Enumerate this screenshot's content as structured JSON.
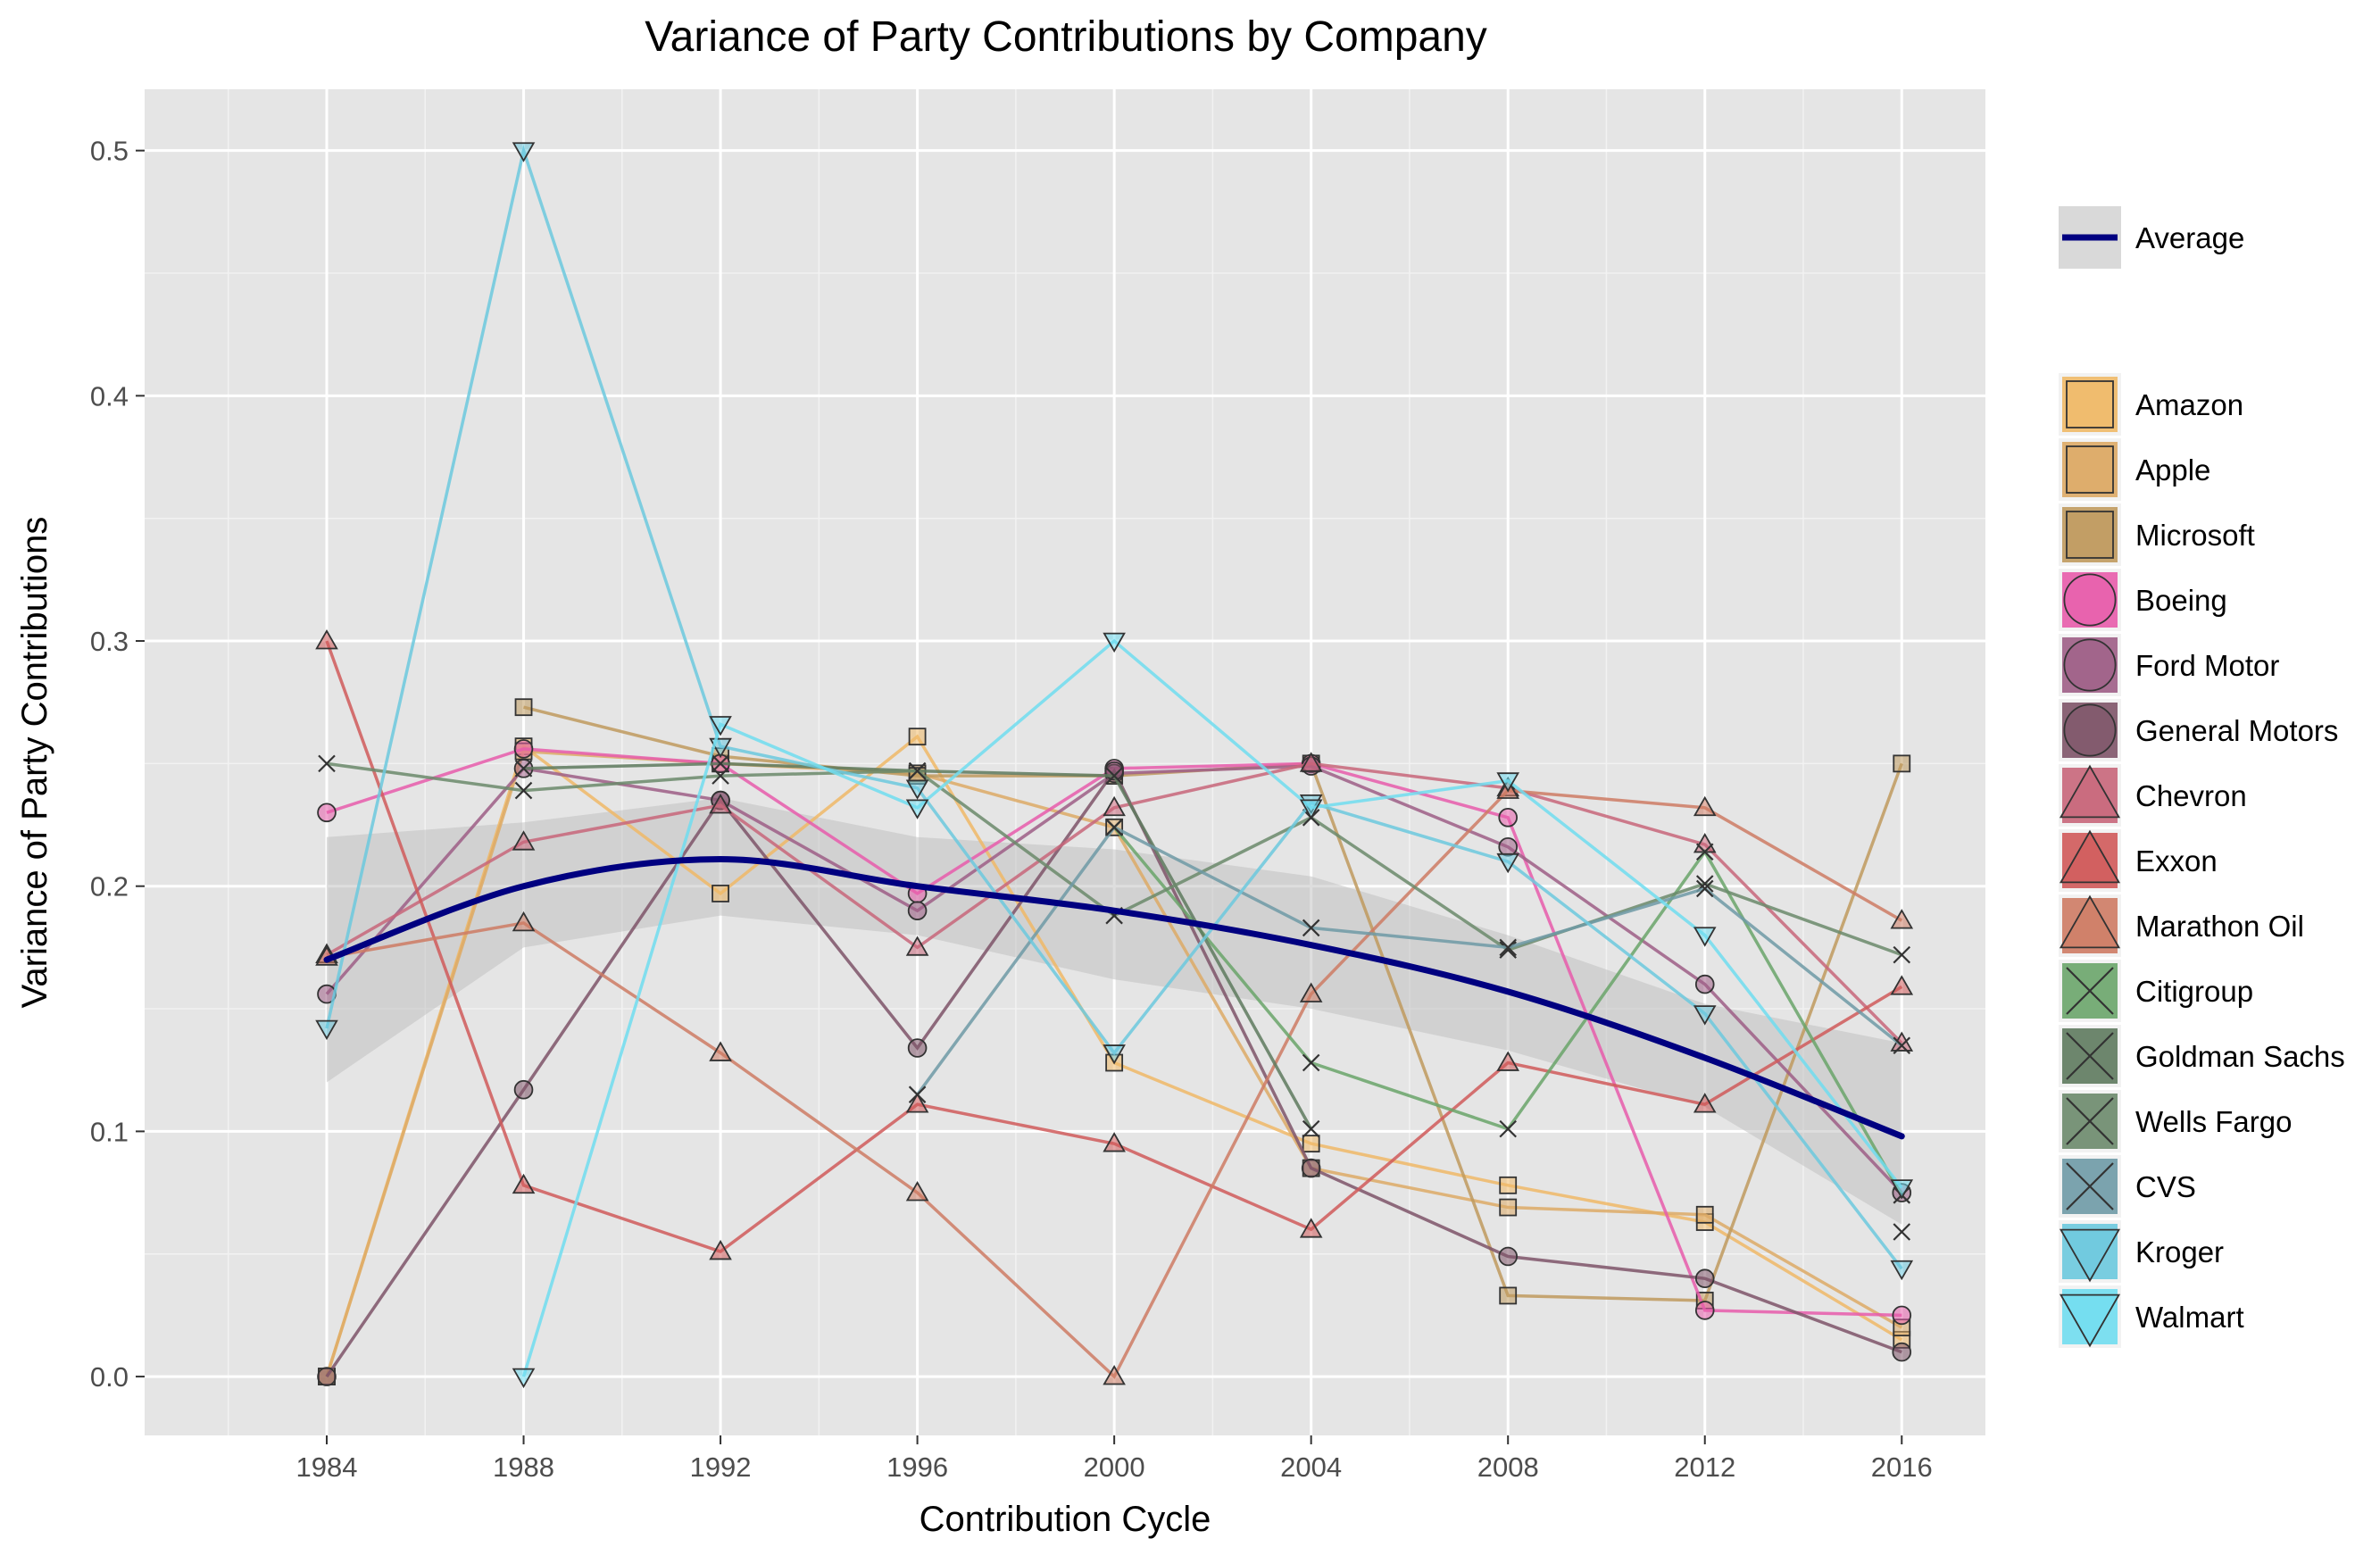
{
  "chart_data": {
    "type": "line",
    "title": "Variance of Party Contributions by Company",
    "xlabel": "Contribution Cycle",
    "ylabel": "Variance of Party Contributions",
    "x": [
      1984,
      1988,
      1992,
      1996,
      2000,
      2004,
      2008,
      2012,
      2016
    ],
    "x_ticks": [
      "1984",
      "1988",
      "1992",
      "1996",
      "2000",
      "2004",
      "2008",
      "2012",
      "2016"
    ],
    "y_ticks": [
      "0.0",
      "0.1",
      "0.2",
      "0.3",
      "0.4",
      "0.5"
    ],
    "xlim": [
      1980.3,
      2017.7
    ],
    "ylim": [
      -0.024,
      0.525
    ],
    "grid": true,
    "legend_position": "right",
    "average": {
      "name": "Average",
      "color": "#000080",
      "values": [
        0.17,
        0.2,
        0.211,
        0.2,
        0.19,
        0.176,
        0.157,
        0.13,
        0.098
      ],
      "ci_lower": [
        0.12,
        0.175,
        0.188,
        0.18,
        0.162,
        0.15,
        0.133,
        0.11,
        0.062
      ],
      "ci_upper": [
        0.22,
        0.226,
        0.236,
        0.22,
        0.215,
        0.204,
        0.18,
        0.152,
        0.136
      ]
    },
    "series": [
      {
        "name": "Amazon",
        "color": "#F0B967",
        "marker": "square",
        "values": [
          0.0,
          0.257,
          0.197,
          0.261,
          0.128,
          0.095,
          0.078,
          0.063,
          0.015
        ]
      },
      {
        "name": "Apple",
        "color": "#DDAA66",
        "marker": "square",
        "values": [
          0.0,
          0.255,
          0.25,
          0.246,
          0.224,
          0.085,
          0.069,
          0.066,
          0.02
        ]
      },
      {
        "name": "Microsoft",
        "color": "#C09A5E",
        "marker": "square",
        "values": [
          null,
          0.273,
          0.253,
          0.245,
          0.245,
          0.25,
          0.033,
          0.031,
          0.25
        ]
      },
      {
        "name": "Boeing",
        "color": "#E85CAB",
        "marker": "circle",
        "values": [
          0.23,
          0.256,
          0.25,
          0.197,
          0.248,
          0.25,
          0.228,
          0.027,
          0.025
        ]
      },
      {
        "name": "Ford Motor",
        "color": "#9E5E86",
        "marker": "circle",
        "values": [
          0.156,
          0.248,
          0.235,
          0.19,
          0.246,
          0.249,
          0.216,
          0.16,
          0.075
        ]
      },
      {
        "name": "General Motors",
        "color": "#7E5468",
        "marker": "circle",
        "values": [
          0.0,
          0.117,
          0.235,
          0.134,
          0.247,
          0.085,
          0.049,
          0.04,
          0.01
        ]
      },
      {
        "name": "Chevron",
        "color": "#C8667A",
        "marker": "triangle-up",
        "values": [
          0.172,
          0.218,
          0.233,
          0.175,
          0.232,
          0.25,
          0.24,
          0.217,
          0.136
        ]
      },
      {
        "name": "Exxon",
        "color": "#D05A5A",
        "marker": "triangle-up",
        "values": [
          0.3,
          0.078,
          0.051,
          0.111,
          0.095,
          0.06,
          0.128,
          0.111,
          0.159
        ]
      },
      {
        "name": "Marathon Oil",
        "color": "#CE7B64",
        "marker": "triangle-up",
        "values": [
          0.171,
          0.185,
          0.132,
          0.075,
          0.0,
          0.156,
          0.239,
          0.232,
          0.186
        ]
      },
      {
        "name": "Citigroup",
        "color": "#6AA56A",
        "marker": "x",
        "values": [
          null,
          null,
          null,
          null,
          0.224,
          0.128,
          0.101,
          0.214,
          0.074
        ]
      },
      {
        "name": "Goldman Sachs",
        "color": "#5E7A5E",
        "marker": "x",
        "values": [
          null,
          0.248,
          0.25,
          0.247,
          0.245,
          0.101,
          null,
          null,
          0.059
        ]
      },
      {
        "name": "Wells Fargo",
        "color": "#6B8A6B",
        "marker": "x",
        "values": [
          0.25,
          0.239,
          0.245,
          0.247,
          0.188,
          0.228,
          0.174,
          0.201,
          0.172
        ]
      },
      {
        "name": "CVS",
        "color": "#6E9AA6",
        "marker": "x",
        "values": [
          null,
          null,
          null,
          0.115,
          0.224,
          0.183,
          0.175,
          0.199,
          0.135
        ]
      },
      {
        "name": "Kroger",
        "color": "#6CC9DE",
        "marker": "triangle-down",
        "values": [
          0.142,
          0.5,
          0.257,
          0.24,
          0.132,
          0.234,
          0.21,
          0.148,
          0.044
        ]
      },
      {
        "name": "Walmart",
        "color": "#70DDF0",
        "marker": "triangle-down",
        "values": [
          null,
          0.0,
          0.266,
          0.232,
          0.3,
          0.232,
          0.243,
          0.18,
          0.077
        ]
      }
    ]
  }
}
